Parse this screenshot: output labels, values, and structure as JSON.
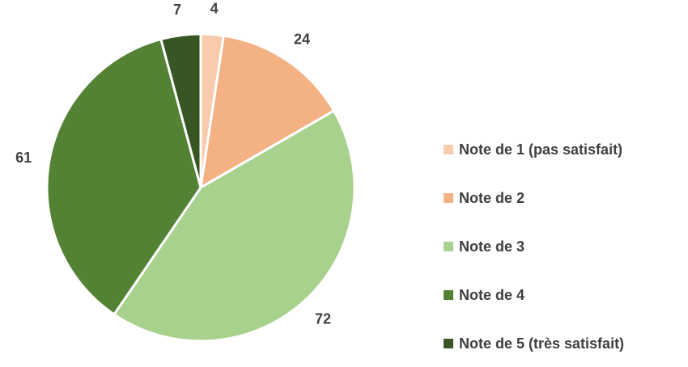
{
  "chart_data": {
    "type": "pie",
    "title": "",
    "categories": [
      "Note de 1 (pas satisfait)",
      "Note de 2",
      "Note de 3",
      "Note de 4",
      "Note de 5 (très satisfait)"
    ],
    "values": [
      4,
      24,
      72,
      61,
      7
    ],
    "data_labels": [
      "4",
      "24",
      "72",
      "61",
      "7"
    ],
    "colors": [
      "#f8cbad",
      "#f4b183",
      "#a9d18e",
      "#548235",
      "#375623"
    ],
    "legend_position": "right",
    "start_angle_deg": 0,
    "direction": "clockwise"
  }
}
